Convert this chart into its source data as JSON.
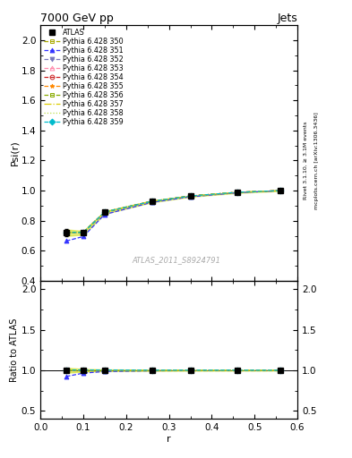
{
  "title": "7000 GeV pp",
  "title_right": "Jets",
  "ylabel_main": "Psi(r)",
  "ylabel_ratio": "Ratio to ATLAS",
  "xlabel": "r",
  "watermark": "ATLAS_2011_S8924791",
  "right_label": "Rivet 3.1.10, ≥ 3.1M events",
  "right_label2": "mcplots.cern.ch [arXiv:1306.3436]",
  "x_values": [
    0.06,
    0.1,
    0.15,
    0.26,
    0.35,
    0.46,
    0.56
  ],
  "atlas_y": [
    0.72,
    0.72,
    0.855,
    0.928,
    0.963,
    0.988,
    1.0
  ],
  "atlas_yerr": [
    0.022,
    0.012,
    0.009,
    0.006,
    0.004,
    0.003,
    0.002
  ],
  "series": [
    {
      "label": "Pythia 6.428 350",
      "color": "#aaaa00",
      "linestyle": "--",
      "marker": "s",
      "markerfill": "none",
      "y": [
        0.72,
        0.72,
        0.855,
        0.928,
        0.963,
        0.988,
        1.0
      ]
    },
    {
      "label": "Pythia 6.428 351",
      "color": "#3333ff",
      "linestyle": "--",
      "marker": "^",
      "markerfill": "full",
      "y": [
        0.665,
        0.695,
        0.842,
        0.922,
        0.959,
        0.986,
        1.0
      ]
    },
    {
      "label": "Pythia 6.428 352",
      "color": "#7777bb",
      "linestyle": "--",
      "marker": "v",
      "markerfill": "full",
      "y": [
        0.72,
        0.72,
        0.857,
        0.928,
        0.963,
        0.988,
        1.0
      ]
    },
    {
      "label": "Pythia 6.428 353",
      "color": "#ff88aa",
      "linestyle": "--",
      "marker": "^",
      "markerfill": "none",
      "y": [
        0.722,
        0.722,
        0.858,
        0.929,
        0.964,
        0.989,
        1.0
      ]
    },
    {
      "label": "Pythia 6.428 354",
      "color": "#cc2222",
      "linestyle": "--",
      "marker": "o",
      "markerfill": "none",
      "y": [
        0.722,
        0.722,
        0.858,
        0.929,
        0.964,
        0.989,
        1.0
      ]
    },
    {
      "label": "Pythia 6.428 355",
      "color": "#ff8800",
      "linestyle": "--",
      "marker": "*",
      "markerfill": "full",
      "y": [
        0.722,
        0.722,
        0.858,
        0.929,
        0.964,
        0.989,
        1.0
      ]
    },
    {
      "label": "Pythia 6.428 356",
      "color": "#88aa00",
      "linestyle": "--",
      "marker": "s",
      "markerfill": "none",
      "y": [
        0.722,
        0.722,
        0.858,
        0.929,
        0.964,
        0.989,
        1.0
      ]
    },
    {
      "label": "Pythia 6.428 357",
      "color": "#ddcc00",
      "linestyle": "-.",
      "marker": "None",
      "markerfill": "none",
      "y": [
        0.722,
        0.722,
        0.858,
        0.929,
        0.964,
        0.989,
        1.0
      ]
    },
    {
      "label": "Pythia 6.428 358",
      "color": "#bbdd44",
      "linestyle": ":",
      "marker": "None",
      "markerfill": "none",
      "y": [
        0.722,
        0.722,
        0.858,
        0.929,
        0.964,
        0.989,
        1.0
      ]
    },
    {
      "label": "Pythia 6.428 359",
      "color": "#00bbcc",
      "linestyle": "--",
      "marker": "D",
      "markerfill": "full",
      "y": [
        0.722,
        0.722,
        0.858,
        0.929,
        0.964,
        0.989,
        1.0
      ]
    }
  ],
  "ratio_series": [
    {
      "color": "#aaaa00",
      "linestyle": "--",
      "marker": "s",
      "markerfill": "none",
      "y": [
        1.0,
        1.0,
        1.0,
        1.0,
        1.0,
        1.0,
        1.0
      ]
    },
    {
      "color": "#3333ff",
      "linestyle": "--",
      "marker": "^",
      "markerfill": "full",
      "y": [
        0.924,
        0.965,
        0.985,
        0.994,
        0.996,
        0.998,
        1.0
      ]
    },
    {
      "color": "#7777bb",
      "linestyle": "--",
      "marker": "v",
      "markerfill": "full",
      "y": [
        1.0,
        1.0,
        1.002,
        1.0,
        1.0,
        1.0,
        1.0
      ]
    },
    {
      "color": "#ff88aa",
      "linestyle": "--",
      "marker": "^",
      "markerfill": "none",
      "y": [
        1.003,
        1.003,
        1.003,
        1.001,
        1.001,
        1.001,
        1.0
      ]
    },
    {
      "color": "#cc2222",
      "linestyle": "--",
      "marker": "o",
      "markerfill": "none",
      "y": [
        1.003,
        1.003,
        1.003,
        1.001,
        1.001,
        1.001,
        1.0
      ]
    },
    {
      "color": "#ff8800",
      "linestyle": "--",
      "marker": "*",
      "markerfill": "full",
      "y": [
        1.003,
        1.003,
        1.003,
        1.001,
        1.001,
        1.001,
        1.0
      ]
    },
    {
      "color": "#88aa00",
      "linestyle": "--",
      "marker": "s",
      "markerfill": "none",
      "y": [
        1.003,
        1.003,
        1.003,
        1.001,
        1.001,
        1.001,
        1.0
      ]
    },
    {
      "color": "#ddcc00",
      "linestyle": "-.",
      "marker": "None",
      "markerfill": "none",
      "y": [
        1.003,
        1.003,
        1.003,
        1.001,
        1.001,
        1.001,
        1.0
      ]
    },
    {
      "color": "#bbdd44",
      "linestyle": ":",
      "marker": "None",
      "markerfill": "none",
      "y": [
        1.003,
        1.003,
        1.003,
        1.001,
        1.001,
        1.001,
        1.0
      ]
    },
    {
      "color": "#00bbcc",
      "linestyle": "--",
      "marker": "D",
      "markerfill": "full",
      "y": [
        1.003,
        1.003,
        1.003,
        1.001,
        1.001,
        1.001,
        1.0
      ]
    }
  ],
  "xlim": [
    0.0,
    0.6
  ],
  "ylim_main": [
    0.4,
    2.1
  ],
  "ylim_ratio": [
    0.4,
    2.1
  ],
  "yticks_main": [
    0.4,
    0.6,
    0.8,
    1.0,
    1.2,
    1.4,
    1.6,
    1.8,
    2.0
  ],
  "yticks_ratio": [
    0.5,
    1.0,
    1.5,
    2.0
  ],
  "xticks": [
    0.0,
    0.1,
    0.2,
    0.3,
    0.4,
    0.5,
    0.6
  ],
  "band_color": "#ccdd00",
  "band_alpha": 0.5
}
